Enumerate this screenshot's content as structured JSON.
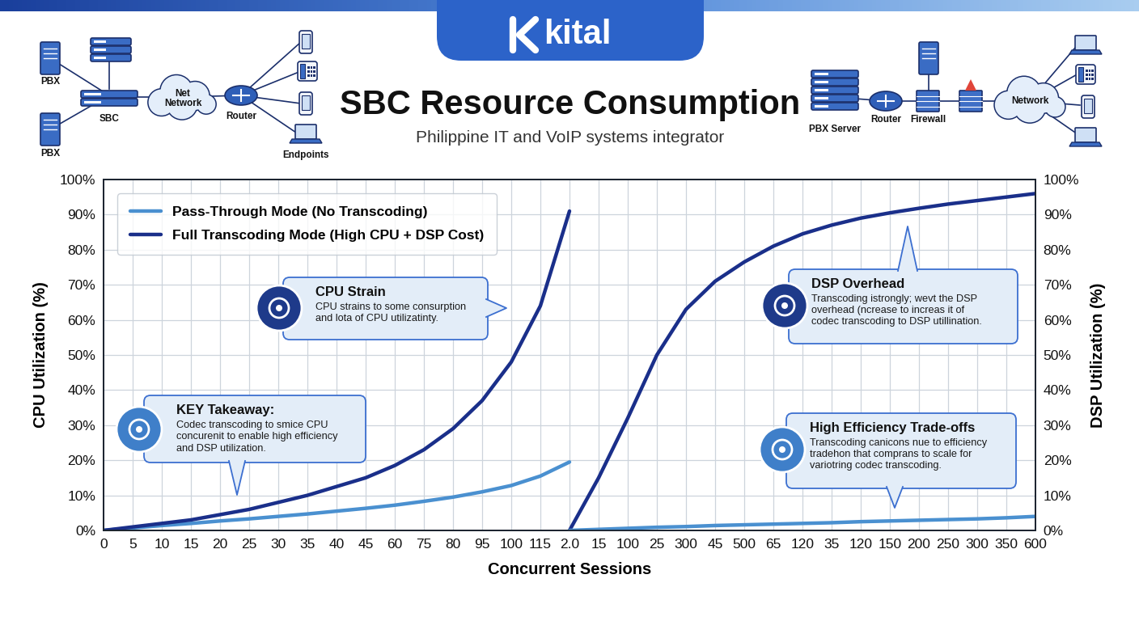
{
  "chart_data": {
    "type": "line",
    "logo_text": "kital",
    "title": "SBC Resource Consumption",
    "subtitle": "Philippine IT and VoIP systems integrator",
    "diagram_labels": {
      "left": [
        "PBX",
        "SBC",
        "PBX",
        "Net\nNetwork",
        "Router",
        "Endpoints"
      ],
      "right": [
        "PBX Server",
        "Router",
        "Firewall",
        "Network"
      ]
    },
    "x_label": "Concurrent Sessions",
    "y_label": "CPU Utilization (%)",
    "y2_label": "DSP Utilization (%)",
    "categories": [
      "0",
      "5",
      "10",
      "15",
      "20",
      "25",
      "30",
      "35",
      "40",
      "45",
      "60",
      "75",
      "80",
      "95",
      "100",
      "115",
      "2.0",
      "15",
      "100",
      "25",
      "300",
      "45",
      "500",
      "65",
      "120",
      "35",
      "120",
      "150",
      "200",
      "250",
      "300",
      "350",
      "600"
    ],
    "ylim": [
      0,
      100
    ],
    "yticks": [
      {
        "value": 0,
        "label": "0%"
      },
      {
        "value": 10,
        "label": "10%"
      },
      {
        "value": 20,
        "label": "20%"
      },
      {
        "value": 30,
        "label": "30%"
      },
      {
        "value": 40,
        "label": "40%"
      },
      {
        "value": 50,
        "label": "50%"
      },
      {
        "value": 60,
        "label": "60%"
      },
      {
        "value": 70,
        "label": "70%"
      },
      {
        "value": 80,
        "label": "80%"
      },
      {
        "value": 90,
        "label": "90%"
      },
      {
        "value": 100,
        "label": "100%"
      }
    ],
    "y2lim": [
      0,
      100
    ],
    "y2ticks": [
      {
        "value": 0,
        "label": "0%"
      },
      {
        "value": 10,
        "label": "10%"
      },
      {
        "value": 20,
        "label": "20%"
      },
      {
        "value": 30,
        "label": "30%"
      },
      {
        "value": 40,
        "label": "40%"
      },
      {
        "value": 50,
        "label": "50%"
      },
      {
        "value": 60,
        "label": "60%"
      },
      {
        "value": 70,
        "label": "70%"
      },
      {
        "value": 80,
        "label": "80%"
      },
      {
        "value": 90,
        "label": "90%"
      },
      {
        "value": 100,
        "label": "100%"
      }
    ],
    "grid": true,
    "legend": "upper left",
    "series": [
      {
        "name": "Pass-Through Mode (No Transcoding)",
        "color": "#4a90d0",
        "line_style": "solid",
        "values": [
          0,
          0.7,
          1.4,
          2,
          2.7,
          3.3,
          4,
          4.7,
          5.5,
          6.3,
          7.2,
          8.3,
          9.5,
          11,
          12.8,
          15.5,
          19.5,
          null,
          null,
          null,
          null,
          null,
          null,
          null,
          null,
          null,
          null,
          null,
          null,
          null,
          null,
          null,
          null
        ]
      },
      {
        "name": "Full Transcoding Mode (High CPU + DSP Cost)",
        "color": "#1a2f8a",
        "line_style": "solid",
        "values": [
          0,
          1,
          2,
          3,
          4.5,
          6,
          8,
          10,
          12.5,
          15,
          18.5,
          23,
          29,
          37,
          48,
          64,
          91,
          null,
          null,
          null,
          null,
          null,
          null,
          null,
          null,
          null,
          null,
          null,
          null,
          null,
          null,
          null,
          null
        ]
      },
      {
        "name": "Full Transcoding Mode (High CPU + DSP Cost)",
        "color": "#1a2f8a",
        "line_style": "solid",
        "axis": "y2",
        "values": [
          null,
          null,
          null,
          null,
          null,
          null,
          null,
          null,
          null,
          null,
          null,
          null,
          null,
          null,
          null,
          null,
          0,
          15,
          32,
          50,
          63,
          71,
          76.5,
          81,
          84.5,
          87,
          89,
          90.5,
          91.8,
          93,
          94,
          95,
          96
        ]
      },
      {
        "name": "Pass-Through Mode (No Transcoding)",
        "color": "#4a90d0",
        "line_style": "solid",
        "axis": "y2",
        "values": [
          null,
          null,
          null,
          null,
          null,
          null,
          null,
          null,
          null,
          null,
          null,
          null,
          null,
          null,
          null,
          null,
          0,
          0.3,
          0.6,
          0.9,
          1.1,
          1.4,
          1.6,
          1.8,
          2,
          2.2,
          2.5,
          2.7,
          2.9,
          3.1,
          3.3,
          3.6,
          4
        ]
      }
    ],
    "annotations": [
      {
        "title": "CPU Strain",
        "text": "CPU strains to some consurption\nand lota of CPU utilizatinty."
      },
      {
        "title": "KEY Takeaway:",
        "text": "Codec transcoding to smice CPU\nconcurenit to enable high efficiency\nand DSP utilization."
      },
      {
        "title": "DSP Overhead",
        "text": "Transcoding istrongly; wevt the DSP\noverhead (ncrease to increas it of\ncodec transcoding to DSP utillination."
      },
      {
        "title": "High Efficiency Trade-offs",
        "text": "Transcoding canicons nue to efficiency\ntradehon that comprans to scale for\nvariotring codec transcoding."
      }
    ]
  }
}
